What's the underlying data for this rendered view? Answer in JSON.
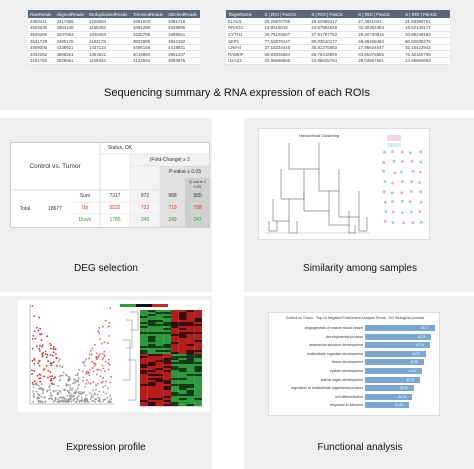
{
  "summary": {
    "caption": "Sequencing summary & RNA expression of each ROIs",
    "left_table": {
      "headers": [
        "RawReads",
        "AlignedReads",
        "DeduplicatedReads",
        "TrimmedReads",
        "StitchedReads"
      ],
      "rows": [
        [
          "3460411",
          "3317995",
          "1226064",
          "3451603",
          "3381719"
        ],
        [
          "3503230",
          "3364148",
          "1158308",
          "3494266",
          "3429556"
        ],
        [
          "3539288",
          "3207663",
          "1040463",
          "3330708",
          "3289951"
        ],
        [
          "3631729",
          "3485178",
          "1183178",
          "3822865",
          "3552182"
        ],
        [
          "4509306",
          "4339921",
          "1437124",
          "4498158",
          "4419841"
        ],
        [
          "4032282",
          "3869261",
          "1364521",
          "4019983",
          "3961207"
        ],
        [
          "3151783",
          "3025561",
          "1159343",
          "3142584",
          "3083875"
        ]
      ]
    },
    "right_table": {
      "headers": [
        "TargetName",
        "S | ROI | PanCK",
        "S | ROI | PanCK",
        "S | ROI | PanCK",
        "S | ROI | PanCK"
      ],
      "rows": [
        [
          "KLHL5",
          "26.29970705",
          "29.52985317",
          "27.4821033",
          "21.58389751"
        ],
        [
          "RRAGC",
          "19.9515019",
          "24.57984648",
          "32.30352494",
          "18.62140177"
        ],
        [
          "CYTH1",
          "26.75103027",
          "27.81797762",
          "28.20730816",
          "20.86248183"
        ],
        [
          "SKP1",
          "77.53879147",
          "80.03010177",
          "69.69458484",
          "60.82935275"
        ],
        [
          "CNIH4",
          "37.18234445",
          "30.81375983",
          "27.96624547",
          "32.16422942"
        ],
        [
          "RAB5IF",
          "69.83025664",
          "66.76318829",
          "63.66376555",
          "76.40160708"
        ],
        [
          "H2AZ2",
          "20.85838835",
          "23.96625764",
          "28.03567661",
          "24.96960693"
        ]
      ]
    }
  },
  "deg": {
    "caption": "DEG selection",
    "comparison": "Control  vs.  Tumor",
    "status_label": "Status, OK",
    "fold_change": "|Fold-Change| ≥ 2",
    "p_value": "P-value ≤ 0.05",
    "q_value": "Q-value ≤ 0.05",
    "total_label": "Total",
    "total_value": "18677",
    "sum_label": "Sum",
    "up_label": "Up",
    "down_label": "Down",
    "sum_values": [
      "7317",
      "972",
      "968",
      "955"
    ],
    "up_values": [
      "5532",
      "723",
      "719",
      "708"
    ],
    "down_values": [
      "1785",
      "249",
      "249",
      "247"
    ],
    "colors": {
      "up": "#d0312d",
      "down": "#2a9d2a"
    }
  },
  "similarity": {
    "caption": "Similarity among samples",
    "title": "Hierarchical Clustering"
  },
  "expression": {
    "caption": "Expression profile"
  },
  "functional": {
    "caption": "Functional analysis",
    "title": "Control vs Tumor : Top 10 Negated Enrichment Analysis Terms - GO Biological process",
    "bars": [
      {
        "label": "angiogenesis of mature blood vessel",
        "value": 50.77
      },
      {
        "label": "developmental process",
        "value": 48.22
      },
      {
        "label": "anatomical structure development",
        "value": 47.14
      },
      {
        "label": "multicellular organism development",
        "value": 44.27
      },
      {
        "label": "tissue development",
        "value": 42.96
      },
      {
        "label": "system development",
        "value": 41.67
      },
      {
        "label": "animal organ development",
        "value": 40.25
      },
      {
        "label": "regulation of multicellular organismal process",
        "value": 35.42
      },
      {
        "label": "cell differentiation",
        "value": 34.44
      },
      {
        "label": "response to stimulus",
        "value": 31.66
      }
    ]
  }
}
